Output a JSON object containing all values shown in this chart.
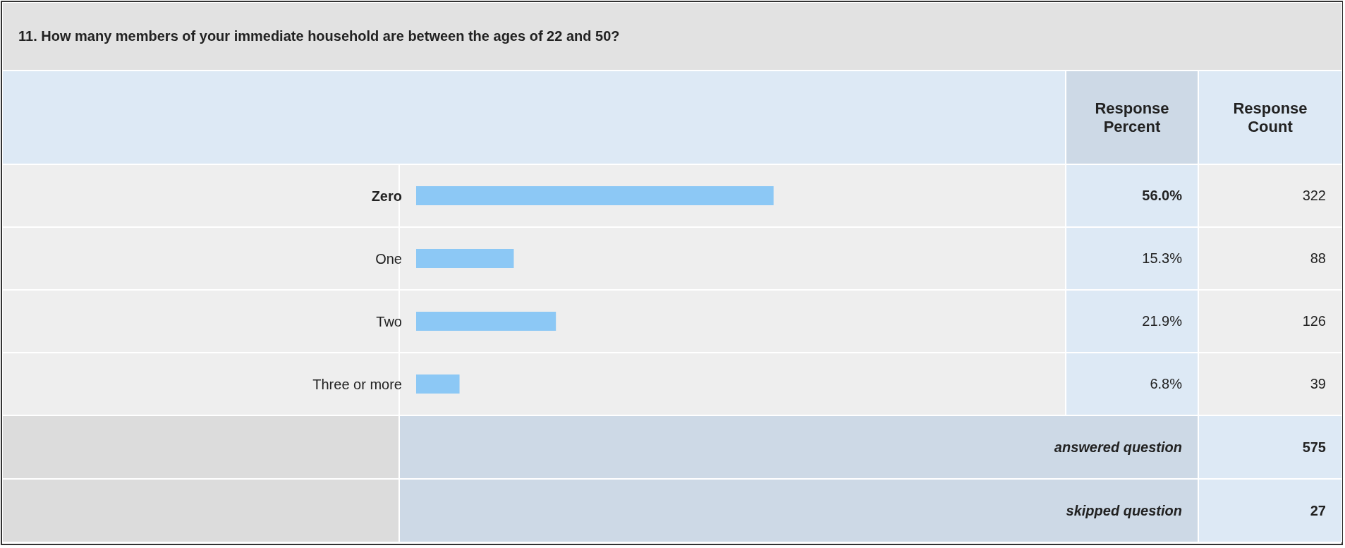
{
  "chart_data": {
    "type": "bar",
    "orientation": "horizontal",
    "title": "11. How many members of your immediate household are between the ages of 22 and 50?",
    "categories": [
      "Zero",
      "One",
      "Two",
      "Three or more"
    ],
    "values": [
      56.0,
      15.3,
      21.9,
      6.8
    ],
    "value_labels": [
      "56.0%",
      "15.3%",
      "21.9%",
      "6.8%"
    ],
    "color": "#8cc8f5",
    "tick_labels": "y",
    "grid": false,
    "annotations": [
      "Response Percent",
      "Response Count",
      "322",
      "88",
      "126",
      "39",
      "answered question",
      "575",
      "skipped question",
      "27"
    ]
  }
}
